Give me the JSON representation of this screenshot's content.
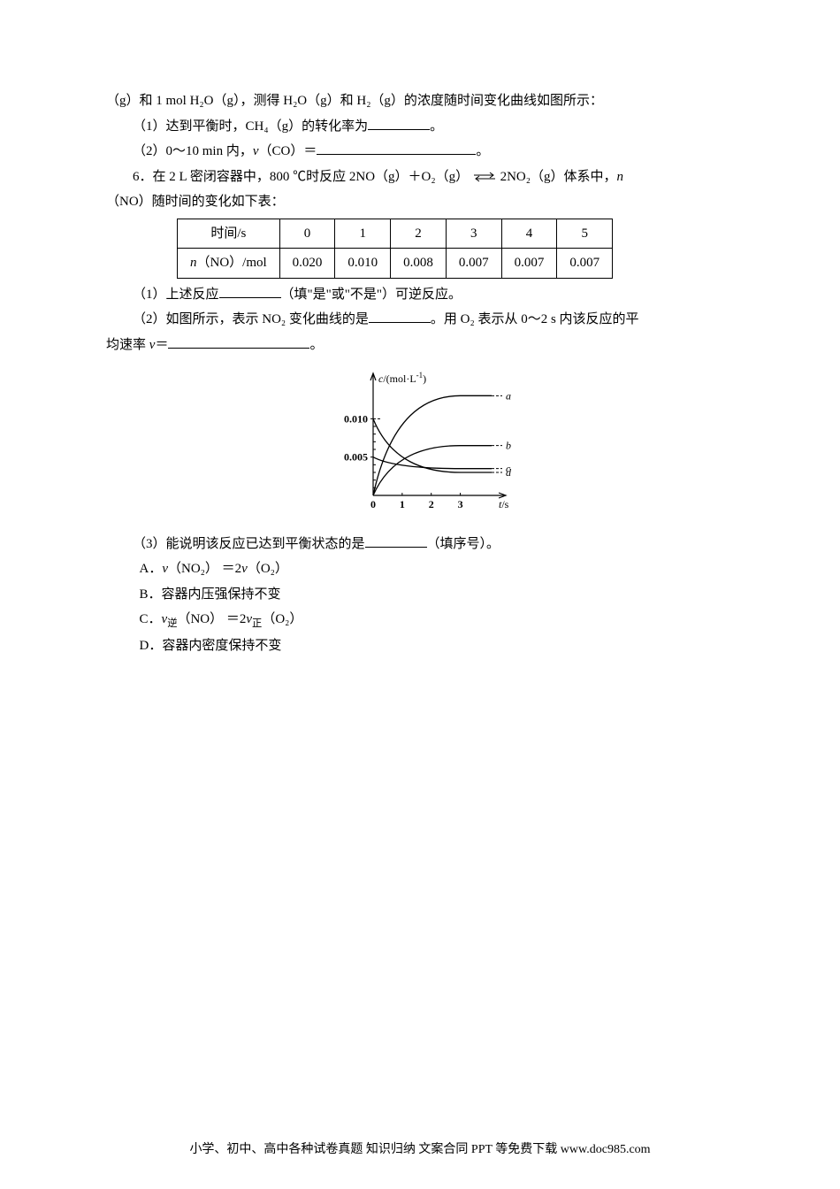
{
  "para1": {
    "line": "（g）和 1 mol H₂O（g），测得 H₂O（g）和 H₂（g）的浓度随时间变化曲线如图所示："
  },
  "q5": {
    "s1_pre": "（1）达到平衡时，CH₄（g）的转化率为",
    "s1_post": "。",
    "s2_pre": "（2）0～10 min 内，",
    "s2_var": "v",
    "s2_mid": "（CO）＝",
    "s2_post": "。"
  },
  "q6": {
    "intro_a": "6．在 2 L 密闭容器中，800 ℃时反应 2NO（g）＋O₂（g）",
    "intro_b": "2NO₂（g）体系中，",
    "intro_c": "n",
    "intro_d": "（NO）随时间的变化如下表：",
    "table": {
      "headers": [
        "时间/s",
        "0",
        "1",
        "2",
        "3",
        "4",
        "5"
      ],
      "row_label_a": "n",
      "row_label_b": "（NO）/mol",
      "values": [
        "0.020",
        "0.010",
        "0.008",
        "0.007",
        "0.007",
        "0.007"
      ]
    },
    "s1_pre": "（1）上述反应",
    "s1_mid": "（填\"是\"或\"不是\"）可逆反应。",
    "s2_pre": "（2）如图所示，表示 NO₂ 变化曲线的是",
    "s2_mid": "。用 O₂ 表示从 0～2 s 内该反应的平",
    "s2_line2_pre": "均速率 ",
    "s2_var": "v",
    "s2_eq": "＝",
    "s2_post": "。",
    "s3_pre": "（3）能说明该反应已达到平衡状态的是",
    "s3_post": "（填序号）。",
    "optA_label": "A．",
    "optA_a": "v",
    "optA_b": "（NO₂） ＝2",
    "optA_c": "v",
    "optA_d": "（O₂）",
    "optB": "B．容器内压强保持不变",
    "optC_label": "C．",
    "optC_a": "v",
    "optC_sub1": "逆",
    "optC_b": "（NO） ＝2",
    "optC_c": "v",
    "optC_sub2": "正",
    "optC_d": "（O₂）",
    "optD": "D．容器内密度保持不变"
  },
  "chart": {
    "ylabel": "c/(mol·L⁻¹)",
    "xlabel": "t/s",
    "yticks": [
      "0.010",
      "0.005"
    ],
    "xticks": [
      "0",
      "1",
      "2",
      "3"
    ],
    "curve_labels": [
      "a",
      "b",
      "c",
      "d"
    ],
    "line_color": "#000000",
    "background": "#ffffff",
    "fontsize": 12,
    "curves": {
      "a": {
        "y0": 0,
        "yEnd": 0.013,
        "label_y": 0.013
      },
      "b": {
        "y0": 0,
        "yEnd": 0.0065,
        "label_y": 0.0065
      },
      "c": {
        "y0": 0.005,
        "yEnd": 0.0035,
        "label_y": 0.0035
      },
      "d": {
        "y0": 0.01,
        "yEnd": 0.003,
        "label_y": 0.003
      }
    },
    "xlim": [
      0,
      5
    ],
    "ylim": [
      0,
      0.015
    ]
  },
  "footer": "小学、初中、高中各种试卷真题  知识归纳  文案合同  PPT 等免费下载   www.doc985.com"
}
